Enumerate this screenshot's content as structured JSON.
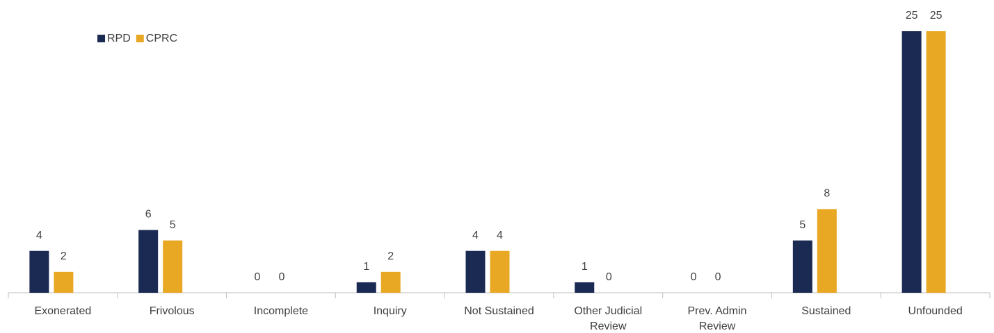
{
  "chart_data": {
    "type": "bar",
    "categories": [
      "Exonerated",
      "Frivolous",
      "Incomplete",
      "Inquiry",
      "Not Sustained",
      "Other Judicial Review",
      "Prev. Admin Review",
      "Sustained",
      "Unfounded"
    ],
    "series": [
      {
        "name": "RPD",
        "color": "#1b2a52",
        "values": [
          4,
          6,
          0,
          1,
          4,
          1,
          0,
          5,
          25
        ]
      },
      {
        "name": "CPRC",
        "color": "#e9a823",
        "values": [
          2,
          5,
          0,
          2,
          4,
          0,
          0,
          8,
          25
        ]
      }
    ],
    "legend": "top-left"
  }
}
